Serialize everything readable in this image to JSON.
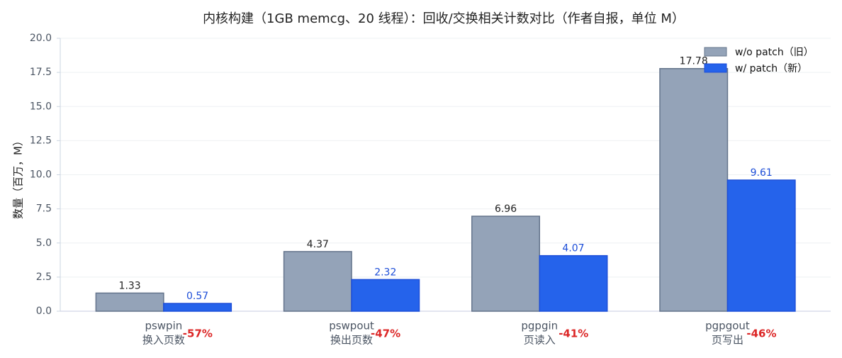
{
  "chart_data": {
    "type": "bar",
    "title": "内核构建（1GB memcg、20 线程）：回收/交换相关计数对比（作者自报，单位 M）",
    "y_label": "数量（百万，M）",
    "categories": [
      "pswpin",
      "pswpout",
      "pgpgin",
      "pgpgout"
    ],
    "category_sublabels": [
      "换入页数",
      "换出页数",
      "页读入",
      "页写出"
    ],
    "series": [
      {
        "name": "w/o patch（旧）",
        "color": "#94a3b8",
        "values": [
          1.33,
          4.37,
          6.96,
          17.78
        ]
      },
      {
        "name": "w/ patch（新）",
        "color": "#2563eb",
        "values": [
          0.57,
          2.32,
          4.07,
          9.61
        ]
      }
    ],
    "annotations": [
      {
        "value": -57,
        "label": "-57%"
      },
      {
        "value": -47,
        "label": "-47%"
      },
      {
        "value": -41,
        "label": "-41%"
      },
      {
        "value": -46,
        "label": "-46%"
      }
    ],
    "ylim": [
      0,
      20
    ],
    "yticks": [
      {
        "value": 0,
        "label": "0.0"
      },
      {
        "value": 2.5,
        "label": "2.5"
      },
      {
        "value": 5,
        "label": "5.0"
      },
      {
        "value": 7.5,
        "label": "7.5"
      },
      {
        "value": 10,
        "label": "10.0"
      },
      {
        "value": 12.5,
        "label": "12.5"
      },
      {
        "value": 15,
        "label": "15.0"
      },
      {
        "value": 17.5,
        "label": "17.5"
      },
      {
        "value": 20,
        "label": "20.0"
      }
    ],
    "grid": true,
    "legend": "upper right"
  }
}
